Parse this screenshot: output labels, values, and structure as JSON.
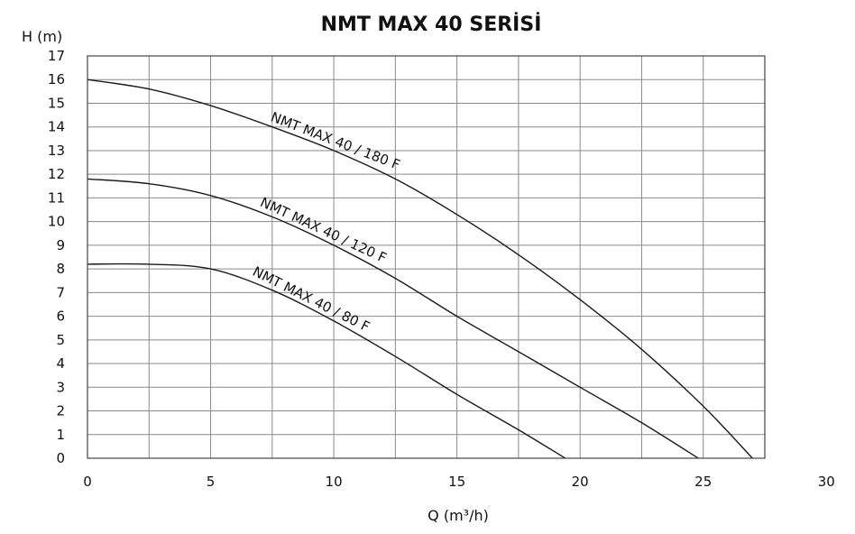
{
  "chart_data": {
    "type": "line",
    "title": "NMT MAX 40 SERİSİ",
    "xlabel": "Q (m³/h)",
    "ylabel": "H (m)",
    "xlim": [
      0,
      27.5
    ],
    "ylim": [
      0,
      17
    ],
    "x_ticks": [
      0,
      5,
      10,
      15,
      20,
      25,
      30
    ],
    "y_ticks": [
      0,
      1,
      2,
      3,
      4,
      5,
      6,
      7,
      8,
      9,
      10,
      11,
      12,
      13,
      14,
      15,
      16,
      17
    ],
    "grid": true,
    "series": [
      {
        "name": "NMT MAX 40 / 180 F",
        "x": [
          0,
          2.5,
          5,
          7.5,
          10,
          12.5,
          15,
          17.5,
          20,
          22.5,
          25,
          27
        ],
        "y": [
          16.0,
          15.6,
          14.9,
          14.0,
          13.0,
          11.8,
          10.3,
          8.6,
          6.7,
          4.6,
          2.2,
          0
        ]
      },
      {
        "name": "NMT MAX 40 / 120 F",
        "x": [
          0,
          2.5,
          5,
          7.5,
          10,
          12.5,
          15,
          17.5,
          20,
          22.5,
          24.8
        ],
        "y": [
          11.8,
          11.6,
          11.1,
          10.2,
          9.0,
          7.6,
          6.0,
          4.5,
          3.0,
          1.5,
          0
        ]
      },
      {
        "name": "NMT MAX 40 / 80 F",
        "x": [
          0,
          2.5,
          5,
          7.5,
          10,
          12.5,
          15,
          17.5,
          19.4
        ],
        "y": [
          8.2,
          8.2,
          8.0,
          7.1,
          5.8,
          4.3,
          2.7,
          1.2,
          0
        ]
      }
    ]
  }
}
